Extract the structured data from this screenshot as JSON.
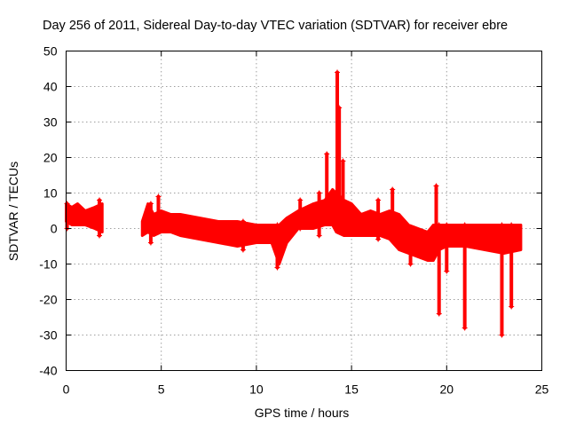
{
  "chart_data": {
    "type": "scatter",
    "title": "Day 256 of 2011, Sidereal Day-to-day VTEC variation (SDTVAR) for receiver ebre",
    "xlabel": "GPS time / hours",
    "ylabel": "SDTVAR / TECUs",
    "xlim": [
      0,
      25
    ],
    "ylim": [
      -40,
      50
    ],
    "xticks": [
      0,
      5,
      10,
      15,
      20,
      25
    ],
    "yticks": [
      -40,
      -30,
      -20,
      -10,
      0,
      10,
      20,
      30,
      40,
      50
    ],
    "grid": true,
    "marker": "+",
    "color": "#ff0000",
    "series": [
      {
        "name": "SDTVAR",
        "band": [
          {
            "x": 0.0,
            "lo": 2,
            "hi": 7
          },
          {
            "x": 0.3,
            "lo": 1,
            "hi": 6
          },
          {
            "x": 0.6,
            "lo": 1,
            "hi": 7
          },
          {
            "x": 1.0,
            "lo": 1,
            "hi": 5
          },
          {
            "x": 1.5,
            "lo": 0,
            "hi": 6
          },
          {
            "x": 1.9,
            "lo": -1,
            "hi": 7
          },
          {
            "x": 4.0,
            "lo": -2,
            "hi": 2
          },
          {
            "x": 4.3,
            "lo": -1,
            "hi": 7
          },
          {
            "x": 4.6,
            "lo": -2,
            "hi": 4
          },
          {
            "x": 5.0,
            "lo": -1,
            "hi": 5
          },
          {
            "x": 5.5,
            "lo": -1,
            "hi": 4
          },
          {
            "x": 6.0,
            "lo": -2,
            "hi": 4
          },
          {
            "x": 7.0,
            "lo": -3,
            "hi": 3
          },
          {
            "x": 8.0,
            "lo": -4,
            "hi": 2
          },
          {
            "x": 9.0,
            "lo": -5,
            "hi": 2
          },
          {
            "x": 10.0,
            "lo": -4,
            "hi": 1
          },
          {
            "x": 10.8,
            "lo": -4,
            "hi": 1
          },
          {
            "x": 11.2,
            "lo": -10,
            "hi": 1
          },
          {
            "x": 11.6,
            "lo": -4,
            "hi": 3
          },
          {
            "x": 12.2,
            "lo": 0,
            "hi": 5
          },
          {
            "x": 13.0,
            "lo": 0,
            "hi": 7
          },
          {
            "x": 13.6,
            "lo": 1,
            "hi": 8
          },
          {
            "x": 14.0,
            "lo": 1,
            "hi": 11
          },
          {
            "x": 14.2,
            "lo": -1,
            "hi": 10
          },
          {
            "x": 14.6,
            "lo": -2,
            "hi": 8
          },
          {
            "x": 15.0,
            "lo": -2,
            "hi": 7
          },
          {
            "x": 15.5,
            "lo": -2,
            "hi": 4
          },
          {
            "x": 16.0,
            "lo": -2,
            "hi": 5
          },
          {
            "x": 16.5,
            "lo": -2,
            "hi": 4
          },
          {
            "x": 17.0,
            "lo": -3,
            "hi": 5
          },
          {
            "x": 17.5,
            "lo": -6,
            "hi": 4
          },
          {
            "x": 18.0,
            "lo": -7,
            "hi": 1
          },
          {
            "x": 18.5,
            "lo": -8,
            "hi": 0
          },
          {
            "x": 19.0,
            "lo": -9,
            "hi": -1
          },
          {
            "x": 19.3,
            "lo": -9,
            "hi": 1
          },
          {
            "x": 19.6,
            "lo": -6,
            "hi": 1
          },
          {
            "x": 20.0,
            "lo": -5,
            "hi": 1
          },
          {
            "x": 21.0,
            "lo": -5,
            "hi": 1
          },
          {
            "x": 22.0,
            "lo": -6,
            "hi": 1
          },
          {
            "x": 23.0,
            "lo": -7,
            "hi": 1
          },
          {
            "x": 23.9,
            "lo": -6,
            "hi": 1
          }
        ],
        "spikes": [
          {
            "x": 0.05,
            "lo": 0,
            "hi": 7
          },
          {
            "x": 1.75,
            "lo": -2,
            "hi": 8
          },
          {
            "x": 4.45,
            "lo": -4,
            "hi": 7
          },
          {
            "x": 4.85,
            "lo": 0,
            "hi": 9
          },
          {
            "x": 9.3,
            "lo": -6,
            "hi": 2
          },
          {
            "x": 11.1,
            "lo": -11,
            "hi": 1
          },
          {
            "x": 12.3,
            "lo": 0,
            "hi": 8
          },
          {
            "x": 13.3,
            "lo": -2,
            "hi": 10
          },
          {
            "x": 13.7,
            "lo": 2,
            "hi": 21
          },
          {
            "x": 14.25,
            "lo": 0,
            "hi": 44
          },
          {
            "x": 14.35,
            "lo": 2,
            "hi": 34
          },
          {
            "x": 14.55,
            "lo": 0,
            "hi": 19
          },
          {
            "x": 16.4,
            "lo": -3,
            "hi": 8
          },
          {
            "x": 17.15,
            "lo": -3,
            "hi": 11
          },
          {
            "x": 18.1,
            "lo": -10,
            "hi": 0
          },
          {
            "x": 19.45,
            "lo": -7,
            "hi": 12
          },
          {
            "x": 19.6,
            "lo": -24,
            "hi": 1
          },
          {
            "x": 20.0,
            "lo": -12,
            "hi": 1
          },
          {
            "x": 20.95,
            "lo": -28,
            "hi": 1
          },
          {
            "x": 22.9,
            "lo": -30,
            "hi": 1
          },
          {
            "x": 23.4,
            "lo": -22,
            "hi": 1
          }
        ]
      }
    ]
  }
}
